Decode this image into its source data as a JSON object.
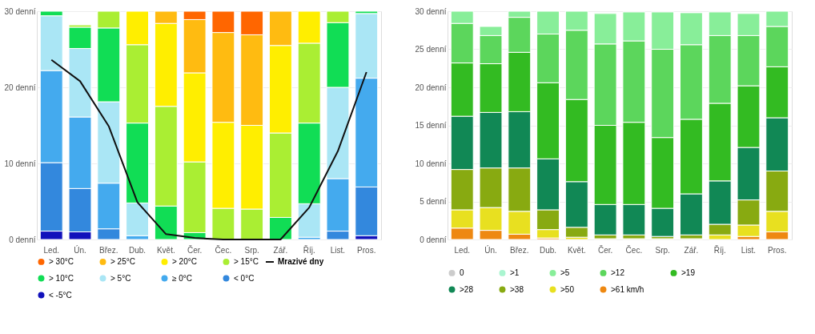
{
  "chart_data": [
    {
      "type": "bar",
      "stacked": true,
      "grid": "y",
      "legend": "bottom",
      "categories": [
        "Led.",
        "Ún.",
        "Břez.",
        "Dub.",
        "Květ.",
        "Čer.",
        "Čec.",
        "Srp.",
        "Zář.",
        "Říj.",
        "List.",
        "Pros."
      ],
      "ylim": [
        0,
        30
      ],
      "yticks": [
        {
          "value": 0,
          "label": "0 denní"
        },
        {
          "value": 10,
          "label": "10 denní"
        },
        {
          "value": 20,
          "label": "20 denní"
        },
        {
          "value": 30,
          "label": "30 denní"
        }
      ],
      "series": [
        {
          "name": "< -5°C",
          "color": "#1111bb",
          "values": [
            1.1,
            1.0,
            null,
            null,
            null,
            null,
            null,
            null,
            null,
            null,
            null,
            0.5
          ]
        },
        {
          "name": "< 0°C",
          "color": "#3388dd",
          "values": [
            9.0,
            5.7,
            1.4,
            null,
            null,
            null,
            null,
            null,
            null,
            null,
            1.1,
            6.4
          ]
        },
        {
          "name": "≥ 0°C",
          "color": "#44aaee",
          "values": [
            12.1,
            9.4,
            6.0,
            0.5,
            null,
            null,
            null,
            null,
            null,
            0.3,
            6.9,
            14.3
          ]
        },
        {
          "name": "> 5°C",
          "color": "#aae6f5",
          "values": [
            7.2,
            9.0,
            10.7,
            4.3,
            null,
            null,
            null,
            null,
            null,
            4.4,
            12.0,
            8.5
          ]
        },
        {
          "name": "> 10°C",
          "color": "#11dd55",
          "values": [
            0.6,
            2.8,
            9.7,
            10.5,
            4.4,
            0.9,
            null,
            null,
            2.9,
            10.6,
            8.5,
            0.3
          ]
        },
        {
          "name": "> 15°C",
          "color": "#aaee33",
          "values": [
            null,
            0.3,
            2.2,
            10.3,
            13.1,
            9.3,
            4.1,
            4.0,
            11.1,
            10.5,
            1.5,
            null
          ]
        },
        {
          "name": "> 20°C",
          "color": "#ffee00",
          "values": [
            null,
            null,
            null,
            4.4,
            10.9,
            11.7,
            11.3,
            11.0,
            11.5,
            4.2,
            null,
            null
          ]
        },
        {
          "name": "> 25°C",
          "color": "#ffbb11",
          "values": [
            null,
            null,
            null,
            null,
            1.6,
            7.0,
            11.8,
            11.9,
            4.5,
            null,
            null,
            null
          ]
        },
        {
          "name": "> 30°C",
          "color": "#ff6600",
          "values": [
            null,
            null,
            null,
            null,
            null,
            1.1,
            2.8,
            3.1,
            null,
            null,
            null,
            null
          ]
        },
        {
          "name": "Mrazivé dny",
          "type": "line",
          "color": "#111111",
          "values": [
            23.6,
            20.8,
            14.9,
            4.9,
            0.7,
            0.2,
            0,
            0,
            0,
            4.2,
            11.6,
            22.0
          ]
        }
      ]
    },
    {
      "type": "bar",
      "stacked": true,
      "grid": "y",
      "legend": "bottom",
      "categories": [
        "Led.",
        "Ún.",
        "Břez.",
        "Dub.",
        "Květ.",
        "Čer.",
        "Čec.",
        "Srp.",
        "Zář.",
        "Říj.",
        "List.",
        "Pros."
      ],
      "ylim": [
        0,
        30
      ],
      "yticks": [
        {
          "value": 0,
          "label": "0 denní"
        },
        {
          "value": 5,
          "label": "5 denní"
        },
        {
          "value": 10,
          "label": "10 denní"
        },
        {
          "value": 15,
          "label": "15 denní"
        },
        {
          "value": 20,
          "label": "20 denní"
        },
        {
          "value": 25,
          "label": "25 denní"
        },
        {
          "value": 30,
          "label": "30 denní"
        }
      ],
      "series": [
        {
          "name": ">61 km/h",
          "color": "#ee8811",
          "values": [
            1.5,
            1.2,
            0.7,
            0.2,
            null,
            null,
            null,
            null,
            null,
            null,
            0.4,
            1.0
          ]
        },
        {
          "name": ">50",
          "color": "#e8e020",
          "values": [
            2.4,
            3.0,
            3.0,
            1.1,
            0.3,
            0.1,
            0.1,
            0.1,
            0.1,
            0.6,
            1.5,
            2.7
          ]
        },
        {
          "name": ">38",
          "color": "#88aa11",
          "values": [
            5.3,
            5.2,
            5.7,
            2.6,
            1.3,
            0.5,
            0.5,
            0.3,
            0.5,
            1.4,
            3.3,
            5.3
          ]
        },
        {
          "name": ">28",
          "color": "#118855",
          "values": [
            7.0,
            7.3,
            7.4,
            6.7,
            6.0,
            4.0,
            4.0,
            3.7,
            5.4,
            5.7,
            6.9,
            7.0
          ]
        },
        {
          "name": ">19",
          "color": "#33bb22",
          "values": [
            7.0,
            6.4,
            7.8,
            10.0,
            10.8,
            10.4,
            10.8,
            9.3,
            9.8,
            10.2,
            8.1,
            6.7
          ]
        },
        {
          "name": ">12",
          "color": "#5cd65c",
          "values": [
            5.2,
            3.7,
            4.6,
            6.4,
            9.1,
            10.7,
            10.7,
            11.6,
            9.8,
            8.9,
            6.6,
            5.3
          ]
        },
        {
          "name": ">5",
          "color": "#88ee99",
          "values": [
            1.6,
            1.2,
            0.8,
            3.0,
            2.5,
            4.0,
            3.8,
            4.9,
            4.2,
            3.1,
            2.9,
            2.0
          ]
        },
        {
          "name": ">1",
          "color": "#aaf5d0",
          "values": [
            null,
            null,
            null,
            null,
            null,
            null,
            null,
            null,
            null,
            null,
            null,
            null
          ]
        },
        {
          "name": "0",
          "color": "#cccccc",
          "values": [
            null,
            null,
            null,
            null,
            null,
            null,
            null,
            null,
            null,
            null,
            null,
            null
          ]
        }
      ]
    }
  ]
}
